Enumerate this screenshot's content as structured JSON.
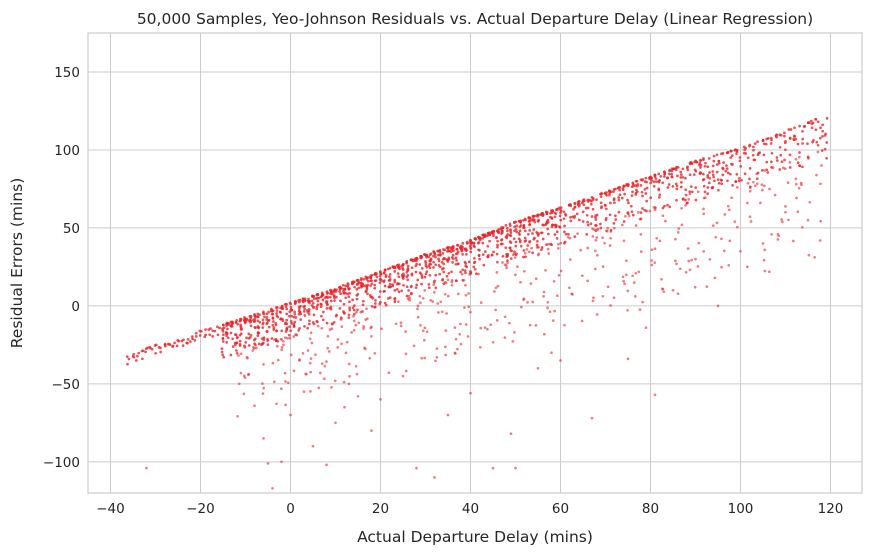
{
  "chart_data": {
    "type": "scatter",
    "title": "50,000 Samples, Yeo-Johnson Residuals vs. Actual Departure Delay (Linear Regression)",
    "xlabel": "Actual Departure Delay (mins)",
    "ylabel": "Residual Errors (mins)",
    "xlim": [
      -45,
      127
    ],
    "ylim": [
      -120,
      175
    ],
    "xticks": [
      -40,
      -20,
      0,
      20,
      40,
      60,
      80,
      100,
      120
    ],
    "yticks": [
      -100,
      -50,
      0,
      50,
      100,
      150
    ],
    "xtick_labels": [
      "−40",
      "−20",
      "0",
      "20",
      "40",
      "60",
      "80",
      "100",
      "120"
    ],
    "ytick_labels": [
      "−100",
      "−50",
      "0",
      "50",
      "100",
      "150"
    ],
    "grid": true,
    "legend": "none",
    "series": [
      {
        "color": "#e8262b",
        "upper_edge_points": [
          [
            -37,
            -34
          ],
          [
            -33,
            -28
          ],
          [
            -30,
            -25
          ],
          [
            -26,
            -23
          ],
          [
            -22,
            -19
          ],
          [
            -20,
            -16
          ],
          [
            -15,
            -12
          ],
          [
            -10,
            -7
          ],
          [
            -5,
            -3
          ],
          [
            0,
            2
          ],
          [
            10,
            11
          ],
          [
            20,
            22
          ],
          [
            30,
            33
          ],
          [
            40,
            42
          ],
          [
            50,
            54
          ],
          [
            60,
            63
          ],
          [
            70,
            73
          ],
          [
            80,
            83
          ],
          [
            90,
            93
          ],
          [
            100,
            101
          ],
          [
            110,
            112
          ],
          [
            119,
            122
          ]
        ],
        "outlier_points": [
          [
            -32,
            -104
          ],
          [
            -5,
            -101
          ],
          [
            -4,
            -117
          ],
          [
            -2,
            -100
          ],
          [
            -8,
            -64
          ],
          [
            -6,
            -85
          ],
          [
            0,
            -70
          ],
          [
            3,
            -55
          ],
          [
            5,
            -90
          ],
          [
            8,
            -102
          ],
          [
            10,
            -75
          ],
          [
            12,
            -65
          ],
          [
            15,
            -58
          ],
          [
            18,
            -80
          ],
          [
            20,
            -60
          ],
          [
            25,
            -45
          ],
          [
            28,
            -104
          ],
          [
            32,
            -110
          ],
          [
            35,
            -70
          ],
          [
            40,
            -56
          ],
          [
            45,
            -104
          ],
          [
            49,
            -82
          ],
          [
            50,
            -104
          ],
          [
            55,
            -40
          ],
          [
            58,
            -30
          ],
          [
            60,
            -35
          ],
          [
            67,
            -72
          ],
          [
            75,
            -34
          ],
          [
            79,
            -14
          ],
          [
            81,
            -57
          ],
          [
            85,
            10
          ],
          [
            90,
            30
          ],
          [
            95,
            0
          ],
          [
            100,
            35
          ],
          [
            105,
            40
          ],
          [
            110,
            60
          ],
          [
            115,
            55
          ],
          [
            118,
            90
          ]
        ]
      }
    ]
  }
}
